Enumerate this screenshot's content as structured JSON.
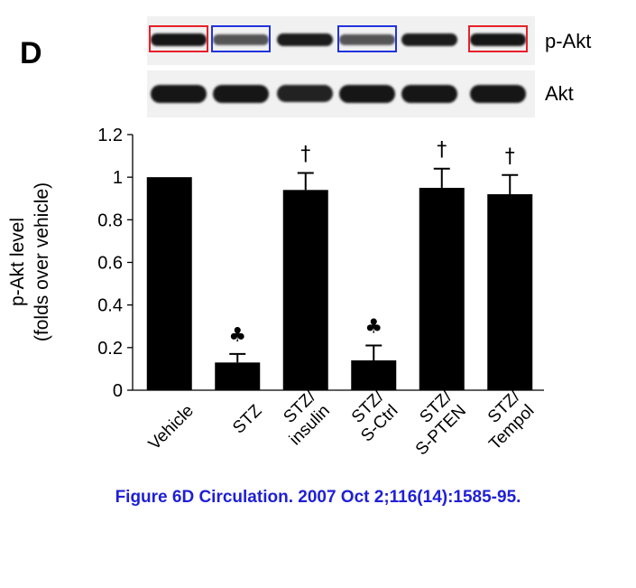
{
  "panel_label": "D",
  "blot": {
    "rows": [
      {
        "label": "p-Akt",
        "intensity": [
          1.0,
          0.55,
          0.95,
          0.55,
          0.95,
          1.0
        ]
      },
      {
        "label": "Akt",
        "intensity": [
          1.0,
          1.0,
          0.9,
          1.0,
          1.0,
          1.0
        ]
      }
    ],
    "highlight_boxes": [
      {
        "lane": 0,
        "color": "#e8202a"
      },
      {
        "lane": 1,
        "color": "#2233dd"
      },
      {
        "lane": 3,
        "color": "#2233dd"
      },
      {
        "lane": 5,
        "color": "#e8202a"
      }
    ]
  },
  "chart_data": {
    "type": "bar",
    "categories": [
      [
        "Vehicle"
      ],
      [
        "STZ"
      ],
      [
        "STZ/",
        "insulin"
      ],
      [
        "STZ/",
        "S-Ctrl"
      ],
      [
        "STZ/",
        "S-PTEN"
      ],
      [
        "STZ/",
        "Tempol"
      ]
    ],
    "values": [
      1.0,
      0.13,
      0.94,
      0.14,
      0.95,
      0.92
    ],
    "errors": [
      0,
      0.04,
      0.08,
      0.07,
      0.09,
      0.09
    ],
    "markers": [
      "",
      "♣",
      "†",
      "♣",
      "†",
      "†"
    ],
    "ylabel_lines": [
      "p-Akt level",
      "(folds over vehicle)"
    ],
    "ylim": [
      0,
      1.2
    ],
    "yticks": [
      "0",
      "0.2",
      "0.4",
      "0.6",
      "0.8",
      "1",
      "1.2"
    ],
    "grid": false,
    "bar_color": "#000000"
  },
  "caption": "Figure 6D Circulation. 2007 Oct 2;116(14):1585-95."
}
